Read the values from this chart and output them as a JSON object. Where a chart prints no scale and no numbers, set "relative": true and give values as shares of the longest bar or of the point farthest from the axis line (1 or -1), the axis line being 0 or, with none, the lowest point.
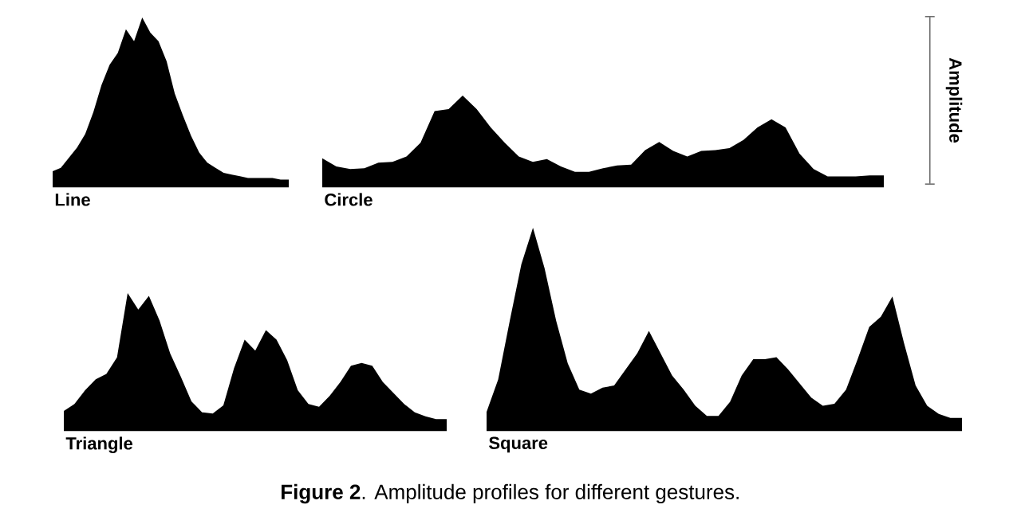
{
  "chart_data": [
    {
      "type": "area",
      "relative": true,
      "xlabel": "Line",
      "color": "#000000",
      "categories": [
        null,
        null,
        null,
        null,
        null,
        null,
        null,
        null,
        null,
        null,
        null,
        null,
        null,
        null,
        null,
        null,
        null,
        null,
        null,
        null,
        null,
        null,
        null,
        null,
        null,
        null,
        null,
        null,
        null,
        null
      ],
      "values": [
        0.09,
        0.11,
        0.17,
        0.23,
        0.31,
        0.44,
        0.6,
        0.72,
        0.79,
        0.93,
        0.86,
        1.0,
        0.91,
        0.86,
        0.74,
        0.55,
        0.42,
        0.3,
        0.2,
        0.14,
        0.11,
        0.08,
        0.07,
        0.06,
        0.05,
        0.05,
        0.05,
        0.05,
        0.04,
        0.04
      ]
    },
    {
      "type": "area",
      "relative": true,
      "xlabel": "Circle",
      "ylabel": "Amplitude",
      "color": "#000000",
      "categories": [
        null,
        null,
        null,
        null,
        null,
        null,
        null,
        null,
        null,
        null,
        null,
        null,
        null,
        null,
        null,
        null,
        null,
        null,
        null,
        null,
        null,
        null,
        null,
        null,
        null,
        null,
        null,
        null,
        null,
        null,
        null,
        null,
        null,
        null,
        null,
        null,
        null,
        null,
        null,
        null,
        null
      ],
      "values": [
        0.31,
        0.22,
        0.19,
        0.2,
        0.26,
        0.27,
        0.33,
        0.48,
        0.83,
        0.85,
        1.0,
        0.85,
        0.65,
        0.48,
        0.33,
        0.27,
        0.3,
        0.22,
        0.16,
        0.16,
        0.2,
        0.23,
        0.24,
        0.4,
        0.49,
        0.39,
        0.33,
        0.39,
        0.4,
        0.42,
        0.51,
        0.65,
        0.74,
        0.65,
        0.36,
        0.19,
        0.11,
        0.11,
        0.11,
        0.12,
        0.12
      ]
    },
    {
      "type": "area",
      "relative": true,
      "xlabel": "Triangle",
      "color": "#000000",
      "categories": [
        null,
        null,
        null,
        null,
        null,
        null,
        null,
        null,
        null,
        null,
        null,
        null,
        null,
        null,
        null,
        null,
        null,
        null,
        null,
        null,
        null,
        null,
        null,
        null,
        null,
        null,
        null,
        null,
        null,
        null,
        null,
        null,
        null,
        null,
        null,
        null,
        null
      ],
      "values": [
        0.14,
        0.19,
        0.29,
        0.37,
        0.41,
        0.53,
        1.0,
        0.88,
        0.98,
        0.8,
        0.56,
        0.39,
        0.21,
        0.13,
        0.12,
        0.18,
        0.45,
        0.66,
        0.58,
        0.73,
        0.66,
        0.51,
        0.29,
        0.19,
        0.17,
        0.25,
        0.35,
        0.47,
        0.49,
        0.47,
        0.35,
        0.27,
        0.19,
        0.13,
        0.1,
        0.08,
        0.08
      ]
    },
    {
      "type": "area",
      "relative": true,
      "xlabel": "Square",
      "color": "#000000",
      "annotations": [
        "**Figure 2**. Amplitude profiles for different gestures."
      ],
      "categories": [
        null,
        null,
        null,
        null,
        null,
        null,
        null,
        null,
        null,
        null,
        null,
        null,
        null,
        null,
        null,
        null,
        null,
        null,
        null,
        null,
        null,
        null,
        null,
        null,
        null,
        null,
        null,
        null,
        null,
        null,
        null,
        null,
        null,
        null,
        null,
        null,
        null,
        null,
        null,
        null,
        null,
        null
      ],
      "values": [
        0.09,
        0.25,
        0.54,
        0.82,
        1.0,
        0.8,
        0.54,
        0.33,
        0.2,
        0.18,
        0.21,
        0.22,
        0.3,
        0.38,
        0.49,
        0.38,
        0.27,
        0.2,
        0.12,
        0.07,
        0.07,
        0.14,
        0.27,
        0.35,
        0.35,
        0.36,
        0.3,
        0.23,
        0.16,
        0.12,
        0.13,
        0.2,
        0.35,
        0.51,
        0.56,
        0.66,
        0.43,
        0.22,
        0.12,
        0.08,
        0.06,
        0.06
      ]
    }
  ]
}
